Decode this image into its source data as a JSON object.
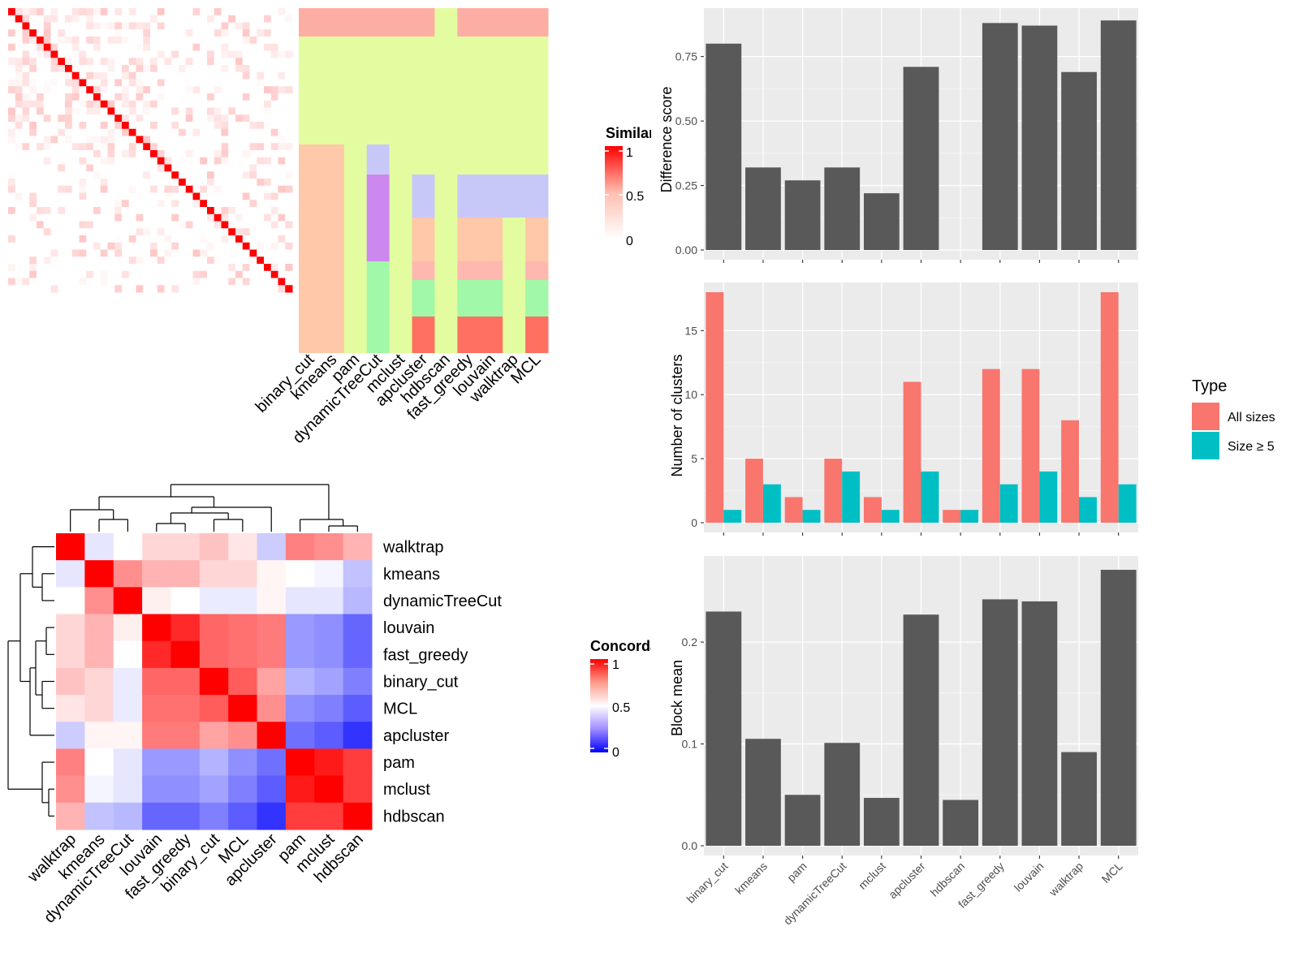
{
  "methods": [
    "binary_cut",
    "kmeans",
    "pam",
    "dynamicTreeCut",
    "mclust",
    "apcluster",
    "hdbscan",
    "fast_greedy",
    "louvain",
    "walktrap",
    "MCL"
  ],
  "concordance_order": [
    "walktrap",
    "kmeans",
    "dynamicTreeCut",
    "louvain",
    "fast_greedy",
    "binary_cut",
    "MCL",
    "apcluster",
    "pam",
    "mclust",
    "hdbscan"
  ],
  "similarity_legend": {
    "title": "Similarity",
    "ticks": [
      "1",
      "0.5",
      "0"
    ]
  },
  "concordance_legend": {
    "title": "Concordance",
    "ticks": [
      "1",
      "0.5",
      "0"
    ]
  },
  "type_legend": {
    "title": "Type",
    "items": [
      "All sizes",
      "Size ≥ 5"
    ],
    "colors": [
      "#F8766D",
      "#00BFC4"
    ]
  },
  "colors": {
    "bar": "#595959",
    "panel": "#EBEBEB",
    "all_sizes": "#F8766D",
    "size5": "#00BFC4"
  },
  "chart_data": [
    {
      "type": "heatmap",
      "title": "",
      "legend_title": "Similarity",
      "n_terms": 40,
      "annotation_columns": [
        "binary_cut",
        "kmeans",
        "pam",
        "dynamicTreeCut",
        "mclust",
        "apcluster",
        "hdbscan",
        "fast_greedy",
        "louvain",
        "walktrap",
        "MCL"
      ]
    },
    {
      "type": "heatmap",
      "legend_title": "Concordance",
      "rows": [
        "walktrap",
        "kmeans",
        "dynamicTreeCut",
        "louvain",
        "fast_greedy",
        "binary_cut",
        "MCL",
        "apcluster",
        "pam",
        "mclust",
        "hdbscan"
      ],
      "cols": [
        "walktrap",
        "kmeans",
        "dynamicTreeCut",
        "louvain",
        "fast_greedy",
        "binary_cut",
        "MCL",
        "apcluster",
        "pam",
        "mclust",
        "hdbscan"
      ],
      "values": [
        [
          1.0,
          0.45,
          0.5,
          0.58,
          0.58,
          0.62,
          0.55,
          0.4,
          0.75,
          0.72,
          0.65
        ],
        [
          0.45,
          1.0,
          0.72,
          0.65,
          0.65,
          0.58,
          0.58,
          0.52,
          0.5,
          0.48,
          0.38
        ],
        [
          0.5,
          0.72,
          1.0,
          0.53,
          0.5,
          0.46,
          0.46,
          0.52,
          0.45,
          0.45,
          0.36
        ],
        [
          0.58,
          0.65,
          0.53,
          1.0,
          0.92,
          0.8,
          0.78,
          0.76,
          0.3,
          0.28,
          0.2
        ],
        [
          0.58,
          0.65,
          0.5,
          0.92,
          1.0,
          0.8,
          0.78,
          0.76,
          0.3,
          0.28,
          0.2
        ],
        [
          0.62,
          0.58,
          0.46,
          0.8,
          0.8,
          1.0,
          0.82,
          0.68,
          0.35,
          0.32,
          0.25
        ],
        [
          0.55,
          0.58,
          0.46,
          0.78,
          0.78,
          0.82,
          1.0,
          0.72,
          0.28,
          0.25,
          0.18
        ],
        [
          0.4,
          0.52,
          0.52,
          0.76,
          0.76,
          0.68,
          0.72,
          1.0,
          0.22,
          0.18,
          0.1
        ],
        [
          0.75,
          0.5,
          0.45,
          0.3,
          0.3,
          0.35,
          0.28,
          0.22,
          1.0,
          0.95,
          0.88
        ],
        [
          0.72,
          0.48,
          0.45,
          0.28,
          0.28,
          0.32,
          0.25,
          0.18,
          0.95,
          1.0,
          0.88
        ],
        [
          0.65,
          0.38,
          0.36,
          0.2,
          0.2,
          0.25,
          0.18,
          0.1,
          0.88,
          0.88,
          1.0
        ]
      ]
    },
    {
      "type": "bar",
      "categories": [
        "binary_cut",
        "kmeans",
        "pam",
        "dynamicTreeCut",
        "mclust",
        "apcluster",
        "hdbscan",
        "fast_greedy",
        "louvain",
        "walktrap",
        "MCL"
      ],
      "values": [
        0.8,
        0.32,
        0.27,
        0.32,
        0.22,
        0.71,
        0.0,
        0.88,
        0.87,
        0.69,
        0.89
      ],
      "ylabel": "Difference score",
      "ylim": [
        0,
        0.9
      ],
      "yticks": [
        "0.00",
        "0.25",
        "0.50",
        "0.75"
      ]
    },
    {
      "type": "bar",
      "categories": [
        "binary_cut",
        "kmeans",
        "pam",
        "dynamicTreeCut",
        "mclust",
        "apcluster",
        "hdbscan",
        "fast_greedy",
        "louvain",
        "walktrap",
        "MCL"
      ],
      "series": [
        {
          "name": "All sizes",
          "values": [
            18,
            5,
            2,
            5,
            2,
            11,
            1,
            12,
            12,
            8,
            18
          ]
        },
        {
          "name": "Size ≥ 5",
          "values": [
            1,
            3,
            1,
            4,
            1,
            4,
            1,
            3,
            4,
            2,
            3
          ]
        }
      ],
      "ylabel": "Number of clusters",
      "ylim": [
        0,
        18
      ],
      "yticks": [
        "0",
        "5",
        "10",
        "15"
      ]
    },
    {
      "type": "bar",
      "categories": [
        "binary_cut",
        "kmeans",
        "pam",
        "dynamicTreeCut",
        "mclust",
        "apcluster",
        "hdbscan",
        "fast_greedy",
        "louvain",
        "walktrap",
        "MCL"
      ],
      "values": [
        0.23,
        0.105,
        0.05,
        0.101,
        0.047,
        0.227,
        0.045,
        0.242,
        0.24,
        0.092,
        0.271
      ],
      "ylabel": "Block mean",
      "ylim": [
        0,
        0.275
      ],
      "yticks": [
        "0.0",
        "0.1",
        "0.2"
      ]
    }
  ]
}
